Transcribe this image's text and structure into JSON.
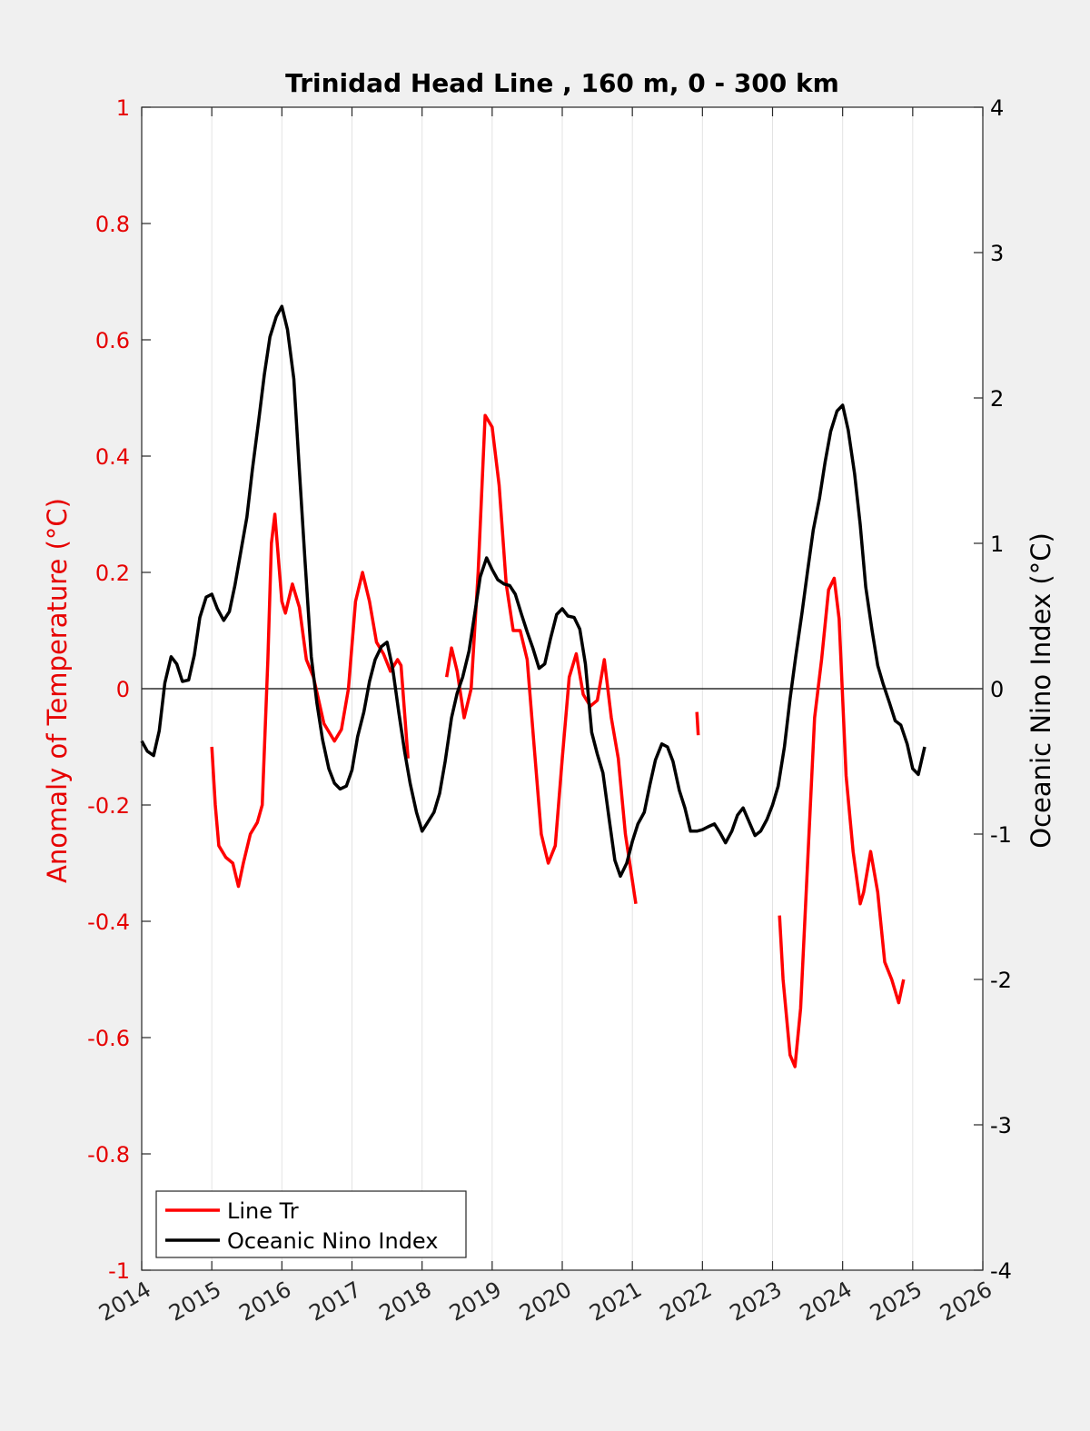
{
  "chart_data": {
    "type": "line",
    "title": "Trinidad Head Line , 160 m, 0 - 300 km",
    "ylabel_left": "Anomaly of Temperature (°C)",
    "ylabel_right": "Oceanic Nino Index (°C)",
    "xlim": [
      2014,
      2026
    ],
    "ylim_left": [
      -1,
      1
    ],
    "ylim_right": [
      -4,
      4
    ],
    "x_ticks": [
      2014,
      2015,
      2016,
      2017,
      2018,
      2019,
      2020,
      2021,
      2022,
      2023,
      2024,
      2025,
      2026
    ],
    "y_ticks_left": [
      -1,
      -0.8,
      -0.6,
      -0.4,
      -0.2,
      0,
      0.2,
      0.4,
      0.6,
      0.8,
      1
    ],
    "y_ticks_right": [
      -4,
      -3,
      -2,
      -1,
      0,
      1,
      2,
      3,
      4
    ],
    "vertical_grid": true,
    "zero_line": true,
    "legend_position": "bottom-left",
    "colors": {
      "line_tr": "#ff0000",
      "oni": "#000000",
      "left_axis": "#e60000",
      "right_axis": "#000000"
    },
    "series": [
      {
        "name": "Line Tr",
        "axis": "left",
        "segments": [
          [
            [
              2015.0,
              -0.1
            ],
            [
              2015.05,
              -0.2
            ],
            [
              2015.1,
              -0.27
            ],
            [
              2015.2,
              -0.29
            ],
            [
              2015.3,
              -0.3
            ],
            [
              2015.38,
              -0.34
            ],
            [
              2015.45,
              -0.3
            ],
            [
              2015.55,
              -0.25
            ],
            [
              2015.65,
              -0.23
            ],
            [
              2015.72,
              -0.2
            ],
            [
              2015.8,
              0.05
            ],
            [
              2015.85,
              0.25
            ],
            [
              2015.9,
              0.3
            ],
            [
              2016.0,
              0.15
            ],
            [
              2016.05,
              0.13
            ],
            [
              2016.15,
              0.18
            ],
            [
              2016.25,
              0.14
            ],
            [
              2016.35,
              0.05
            ],
            [
              2016.45,
              0.02
            ],
            [
              2016.6,
              -0.06
            ],
            [
              2016.75,
              -0.09
            ],
            [
              2016.85,
              -0.07
            ],
            [
              2016.95,
              0.0
            ],
            [
              2017.05,
              0.15
            ],
            [
              2017.15,
              0.2
            ],
            [
              2017.25,
              0.15
            ],
            [
              2017.35,
              0.08
            ],
            [
              2017.45,
              0.06
            ],
            [
              2017.55,
              0.03
            ],
            [
              2017.65,
              0.05
            ],
            [
              2017.7,
              0.04
            ],
            [
              2017.8,
              -0.12
            ]
          ],
          [
            [
              2018.35,
              0.02
            ],
            [
              2018.42,
              0.07
            ],
            [
              2018.5,
              0.03
            ],
            [
              2018.6,
              -0.05
            ],
            [
              2018.7,
              0.0
            ],
            [
              2018.8,
              0.2
            ],
            [
              2018.9,
              0.47
            ],
            [
              2019.0,
              0.45
            ],
            [
              2019.1,
              0.35
            ],
            [
              2019.2,
              0.18
            ],
            [
              2019.3,
              0.1
            ],
            [
              2019.4,
              0.1
            ],
            [
              2019.5,
              0.05
            ],
            [
              2019.6,
              -0.1
            ],
            [
              2019.7,
              -0.25
            ],
            [
              2019.8,
              -0.3
            ],
            [
              2019.9,
              -0.27
            ],
            [
              2020.0,
              -0.12
            ],
            [
              2020.1,
              0.02
            ],
            [
              2020.2,
              0.06
            ],
            [
              2020.3,
              -0.01
            ],
            [
              2020.4,
              -0.03
            ],
            [
              2020.5,
              -0.02
            ],
            [
              2020.6,
              0.05
            ],
            [
              2020.7,
              -0.05
            ],
            [
              2020.8,
              -0.12
            ],
            [
              2020.9,
              -0.25
            ],
            [
              2021.05,
              -0.37
            ]
          ],
          [
            [
              2021.92,
              -0.04
            ],
            [
              2021.94,
              -0.08
            ]
          ],
          [
            [
              2023.1,
              -0.39
            ],
            [
              2023.15,
              -0.5
            ],
            [
              2023.25,
              -0.63
            ],
            [
              2023.32,
              -0.65
            ],
            [
              2023.4,
              -0.55
            ],
            [
              2023.5,
              -0.3
            ],
            [
              2023.6,
              -0.05
            ],
            [
              2023.7,
              0.05
            ],
            [
              2023.8,
              0.17
            ],
            [
              2023.88,
              0.19
            ],
            [
              2023.95,
              0.12
            ],
            [
              2024.05,
              -0.15
            ],
            [
              2024.15,
              -0.28
            ],
            [
              2024.25,
              -0.37
            ],
            [
              2024.3,
              -0.35
            ],
            [
              2024.4,
              -0.28
            ],
            [
              2024.5,
              -0.35
            ],
            [
              2024.6,
              -0.47
            ],
            [
              2024.7,
              -0.5
            ],
            [
              2024.8,
              -0.54
            ],
            [
              2024.87,
              -0.5
            ]
          ]
        ]
      },
      {
        "name": "Oceanic Nino Index",
        "axis": "right",
        "segments": [
          [
            [
              2014.0,
              -0.36
            ],
            [
              2014.08,
              -0.43
            ],
            [
              2014.17,
              -0.46
            ],
            [
              2014.25,
              -0.29
            ],
            [
              2014.33,
              0.04
            ],
            [
              2014.42,
              0.22
            ],
            [
              2014.5,
              0.17
            ],
            [
              2014.58,
              0.05
            ],
            [
              2014.67,
              0.06
            ],
            [
              2014.75,
              0.23
            ],
            [
              2014.83,
              0.49
            ],
            [
              2014.92,
              0.63
            ],
            [
              2015.0,
              0.65
            ],
            [
              2015.08,
              0.55
            ],
            [
              2015.17,
              0.47
            ],
            [
              2015.25,
              0.53
            ],
            [
              2015.33,
              0.71
            ],
            [
              2015.42,
              0.96
            ],
            [
              2015.5,
              1.18
            ],
            [
              2015.58,
              1.51
            ],
            [
              2015.67,
              1.85
            ],
            [
              2015.75,
              2.16
            ],
            [
              2015.83,
              2.42
            ],
            [
              2015.92,
              2.56
            ],
            [
              2016.0,
              2.63
            ],
            [
              2016.08,
              2.47
            ],
            [
              2016.17,
              2.13
            ],
            [
              2016.25,
              1.5
            ],
            [
              2016.33,
              0.88
            ],
            [
              2016.42,
              0.22
            ],
            [
              2016.5,
              -0.1
            ],
            [
              2016.58,
              -0.35
            ],
            [
              2016.67,
              -0.55
            ],
            [
              2016.75,
              -0.65
            ],
            [
              2016.83,
              -0.69
            ],
            [
              2016.92,
              -0.67
            ],
            [
              2017.0,
              -0.56
            ],
            [
              2017.08,
              -0.33
            ],
            [
              2017.17,
              -0.16
            ],
            [
              2017.25,
              0.05
            ],
            [
              2017.33,
              0.2
            ],
            [
              2017.42,
              0.29
            ],
            [
              2017.5,
              0.32
            ],
            [
              2017.58,
              0.14
            ],
            [
              2017.67,
              -0.17
            ],
            [
              2017.75,
              -0.43
            ],
            [
              2017.83,
              -0.65
            ],
            [
              2017.92,
              -0.85
            ],
            [
              2018.0,
              -0.98
            ],
            [
              2018.08,
              -0.92
            ],
            [
              2018.17,
              -0.85
            ],
            [
              2018.25,
              -0.72
            ],
            [
              2018.33,
              -0.5
            ],
            [
              2018.42,
              -0.2
            ],
            [
              2018.5,
              -0.03
            ],
            [
              2018.58,
              0.08
            ],
            [
              2018.67,
              0.26
            ],
            [
              2018.75,
              0.51
            ],
            [
              2018.83,
              0.77
            ],
            [
              2018.92,
              0.9
            ],
            [
              2019.0,
              0.82
            ],
            [
              2019.08,
              0.75
            ],
            [
              2019.17,
              0.72
            ],
            [
              2019.25,
              0.71
            ],
            [
              2019.33,
              0.65
            ],
            [
              2019.42,
              0.51
            ],
            [
              2019.5,
              0.39
            ],
            [
              2019.58,
              0.28
            ],
            [
              2019.67,
              0.14
            ],
            [
              2019.75,
              0.17
            ],
            [
              2019.83,
              0.34
            ],
            [
              2019.92,
              0.51
            ],
            [
              2020.0,
              0.55
            ],
            [
              2020.08,
              0.5
            ],
            [
              2020.17,
              0.49
            ],
            [
              2020.25,
              0.41
            ],
            [
              2020.33,
              0.17
            ],
            [
              2020.42,
              -0.3
            ],
            [
              2020.5,
              -0.45
            ],
            [
              2020.58,
              -0.58
            ],
            [
              2020.67,
              -0.9
            ],
            [
              2020.75,
              -1.18
            ],
            [
              2020.83,
              -1.29
            ],
            [
              2020.92,
              -1.2
            ],
            [
              2021.0,
              -1.05
            ],
            [
              2021.08,
              -0.93
            ],
            [
              2021.17,
              -0.85
            ],
            [
              2021.25,
              -0.66
            ],
            [
              2021.33,
              -0.49
            ],
            [
              2021.42,
              -0.38
            ],
            [
              2021.5,
              -0.4
            ],
            [
              2021.58,
              -0.5
            ],
            [
              2021.67,
              -0.7
            ],
            [
              2021.75,
              -0.82
            ],
            [
              2021.83,
              -0.98
            ],
            [
              2021.92,
              -0.98
            ],
            [
              2022.0,
              -0.97
            ],
            [
              2022.08,
              -0.95
            ],
            [
              2022.17,
              -0.93
            ],
            [
              2022.25,
              -0.99
            ],
            [
              2022.33,
              -1.06
            ],
            [
              2022.42,
              -0.98
            ],
            [
              2022.5,
              -0.87
            ],
            [
              2022.58,
              -0.82
            ],
            [
              2022.67,
              -0.92
            ],
            [
              2022.75,
              -1.01
            ],
            [
              2022.83,
              -0.98
            ],
            [
              2022.92,
              -0.9
            ],
            [
              2023.0,
              -0.8
            ],
            [
              2023.08,
              -0.67
            ],
            [
              2023.17,
              -0.4
            ],
            [
              2023.25,
              -0.07
            ],
            [
              2023.33,
              0.22
            ],
            [
              2023.42,
              0.52
            ],
            [
              2023.5,
              0.81
            ],
            [
              2023.58,
              1.09
            ],
            [
              2023.67,
              1.31
            ],
            [
              2023.75,
              1.56
            ],
            [
              2023.83,
              1.77
            ],
            [
              2023.92,
              1.91
            ],
            [
              2024.0,
              1.95
            ],
            [
              2024.08,
              1.78
            ],
            [
              2024.17,
              1.48
            ],
            [
              2024.25,
              1.13
            ],
            [
              2024.33,
              0.7
            ],
            [
              2024.42,
              0.4
            ],
            [
              2024.5,
              0.16
            ],
            [
              2024.58,
              0.03
            ],
            [
              2024.67,
              -0.1
            ],
            [
              2024.75,
              -0.22
            ],
            [
              2024.83,
              -0.25
            ],
            [
              2024.92,
              -0.38
            ],
            [
              2025.0,
              -0.55
            ],
            [
              2025.08,
              -0.59
            ],
            [
              2025.17,
              -0.4
            ]
          ]
        ]
      }
    ]
  }
}
